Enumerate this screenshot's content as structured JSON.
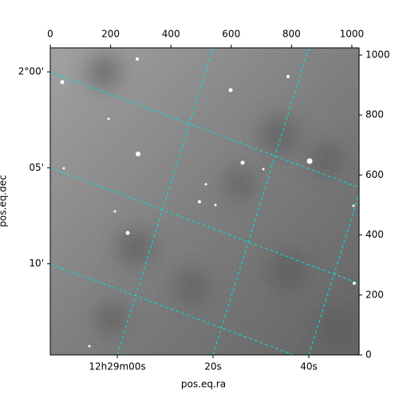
{
  "chart_data": {
    "type": "image",
    "xlabel": "pos.eq.ra",
    "ylabel": "pos.eq.dec",
    "xlim": [
      0,
      1024
    ],
    "xticks": [
      0,
      200,
      400,
      600,
      800,
      1000
    ],
    "ylim": [
      0,
      1024
    ],
    "yticks": [
      0,
      200,
      400,
      600,
      800,
      1000
    ],
    "ra_lim": [
      -14,
      50.5
    ],
    "ra_ticks": [
      {
        "value": 0,
        "label": "12h29m00s"
      },
      {
        "value": 20,
        "label": "20s"
      },
      {
        "value": 40,
        "label": "40s"
      }
    ],
    "dec_lim": [
      -1.25,
      14.75
    ],
    "dec_ticks": [
      {
        "value": 0,
        "label": "2°00'"
      },
      {
        "value": 5,
        "label": "05'"
      },
      {
        "value": 10,
        "label": "10'"
      }
    ],
    "grid": true,
    "grid_color": "#00e0e0"
  }
}
